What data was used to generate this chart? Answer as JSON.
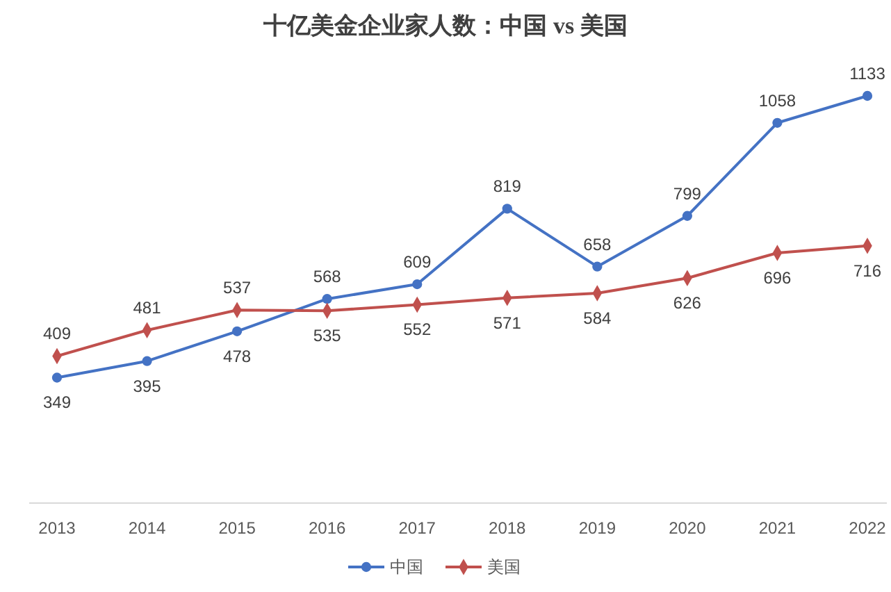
{
  "chart_data": {
    "type": "line",
    "title": "十亿美金企业家人数：中国 vs 美国",
    "categories": [
      "2013",
      "2014",
      "2015",
      "2016",
      "2017",
      "2018",
      "2019",
      "2020",
      "2021",
      "2022"
    ],
    "series": [
      {
        "name": "中国",
        "color": "#4472c4",
        "marker": "circle",
        "values": [
          349,
          395,
          478,
          568,
          609,
          819,
          658,
          799,
          1058,
          1133
        ]
      },
      {
        "name": "美国",
        "color": "#c0504d",
        "marker": "diamond",
        "values": [
          409,
          481,
          537,
          535,
          552,
          571,
          584,
          626,
          696,
          716
        ]
      }
    ],
    "data_labels": true,
    "legend": "bottom"
  }
}
